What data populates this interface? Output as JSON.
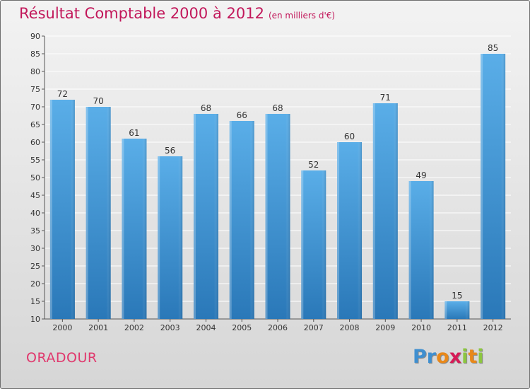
{
  "chart_data": {
    "type": "bar",
    "title": "Résultat Comptable 2000 à 2012",
    "subtitle": "(en milliers d'€)",
    "categories": [
      "2000",
      "2001",
      "2002",
      "2003",
      "2004",
      "2005",
      "2006",
      "2007",
      "2008",
      "2009",
      "2010",
      "2011",
      "2012"
    ],
    "values": [
      72,
      70,
      61,
      56,
      68,
      66,
      68,
      52,
      60,
      71,
      49,
      15,
      85
    ],
    "ylim": [
      10,
      90
    ],
    "yticks": [
      10,
      15,
      20,
      25,
      30,
      35,
      40,
      45,
      50,
      55,
      60,
      65,
      70,
      75,
      80,
      85,
      90
    ],
    "grid": true,
    "bar_color_top": "#5aaee8",
    "bar_color_bottom": "#2a78b8"
  },
  "commune": "ORADOUR",
  "logo": {
    "letters": [
      "P",
      "r",
      "o",
      "x",
      "i",
      "t",
      "i"
    ],
    "colors": [
      "#3f8fd0",
      "#3f8fd0",
      "#e8881a",
      "#d61b57",
      "#8cc63f",
      "#e8881a",
      "#8cc63f"
    ]
  },
  "colors": {
    "title": "#c2185b",
    "commune": "#e0386d"
  }
}
